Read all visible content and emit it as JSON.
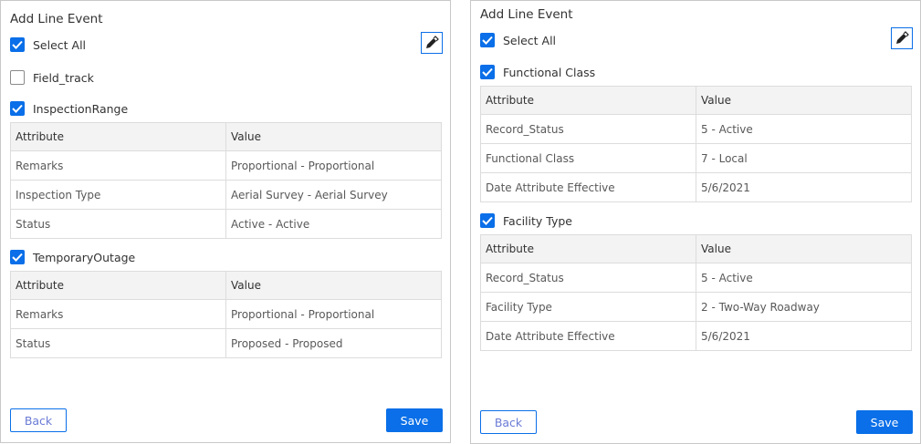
{
  "accent": "#0a6fe8",
  "panels": [
    {
      "title": "Add Line Event",
      "select_all": "Select All",
      "back": "Back",
      "save": "Save",
      "groups": [
        {
          "label": "Field_track",
          "checked": false,
          "rows": []
        },
        {
          "label": "InspectionRange",
          "checked": true,
          "header": [
            "Attribute",
            "Value"
          ],
          "rows": [
            [
              "Remarks",
              "Proportional - Proportional"
            ],
            [
              "Inspection Type",
              "Aerial Survey - Aerial Survey"
            ],
            [
              "Status",
              "Active - Active"
            ]
          ]
        },
        {
          "label": "TemporaryOutage",
          "checked": true,
          "header": [
            "Attribute",
            "Value"
          ],
          "rows": [
            [
              "Remarks",
              "Proportional - Proportional"
            ],
            [
              "Status",
              "Proposed - Proposed"
            ]
          ]
        }
      ]
    },
    {
      "title": "Add Line Event",
      "select_all": "Select All",
      "back": "Back",
      "save": "Save",
      "groups": [
        {
          "label": "Functional Class",
          "checked": true,
          "header": [
            "Attribute",
            "Value"
          ],
          "rows": [
            [
              "Record_Status",
              "5 - Active"
            ],
            [
              "Functional Class",
              "7 - Local"
            ],
            [
              "Date Attribute Effective",
              "5/6/2021"
            ]
          ]
        },
        {
          "label": "Facility Type",
          "checked": true,
          "header": [
            "Attribute",
            "Value"
          ],
          "rows": [
            [
              "Record_Status",
              "5 - Active"
            ],
            [
              "Facility Type",
              "2 - Two-Way Roadway"
            ],
            [
              "Date Attribute Effective",
              "5/6/2021"
            ]
          ]
        }
      ]
    }
  ]
}
